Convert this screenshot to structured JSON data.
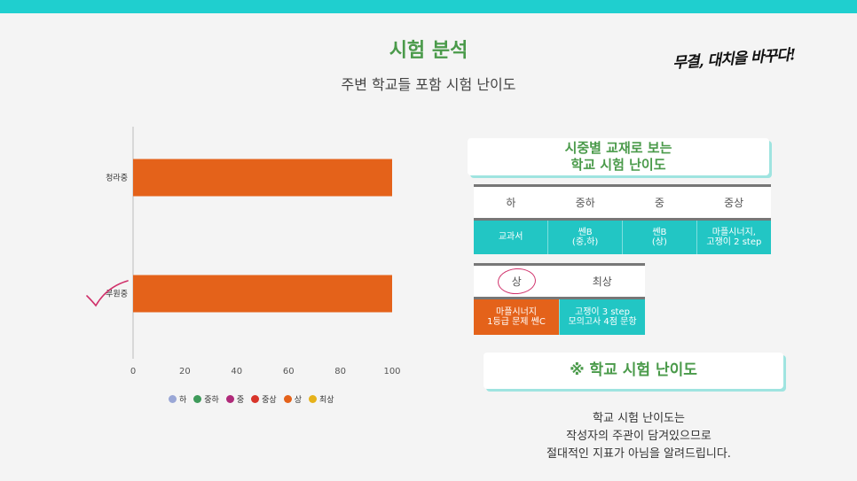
{
  "header": {
    "title": "시험 분석",
    "subtitle": "주변 학교들 포함 시험 난이도",
    "brand": "무결, 대치을 바꾸다!"
  },
  "colors": {
    "accent": "#1fcfcf",
    "title_green": "#4a9a4a",
    "bar": "#e4621a"
  },
  "chart_data": {
    "type": "bar",
    "orientation": "horizontal",
    "categories": [
      "청라중",
      "루원중"
    ],
    "series": [
      {
        "name": "상",
        "values": [
          100,
          100
        ]
      }
    ],
    "xlim": [
      0,
      100
    ],
    "xticks": [
      0,
      20,
      40,
      60,
      80,
      100
    ],
    "legend": [
      "하",
      "중하",
      "중",
      "중상",
      "상",
      "최상"
    ],
    "legend_colors": [
      "#9aa7d6",
      "#3e9a5a",
      "#b02a7a",
      "#d8342a",
      "#e4621a",
      "#e6b21a"
    ],
    "legend_position": "bottom",
    "grid": false
  },
  "difficulty_card": {
    "title_line1": "시중별 교재로 보는",
    "title_line2": "학교 시험 난이도"
  },
  "table1": {
    "headers": [
      "하",
      "중하",
      "중",
      "중상"
    ],
    "cells": [
      [
        "교과서"
      ],
      [
        "쎈B",
        "(중,하)"
      ],
      [
        "쎈B",
        "(상)"
      ],
      [
        "마플시너지,",
        "고쟁이 2 step"
      ]
    ]
  },
  "table2": {
    "headers": [
      "상",
      "최상"
    ],
    "cells": [
      [
        "마플시너지",
        "1등급 문제 쎈C"
      ],
      [
        "고쟁이 3 step",
        "모의고사 4점 문항"
      ]
    ]
  },
  "section_card": {
    "title": "※ 학교 시험 난이도"
  },
  "note": {
    "lines": [
      "학교 시험 난이도는",
      "작성자의 주관이 담겨있으므로",
      "절대적인 지표가 아님을 알려드립니다."
    ]
  }
}
